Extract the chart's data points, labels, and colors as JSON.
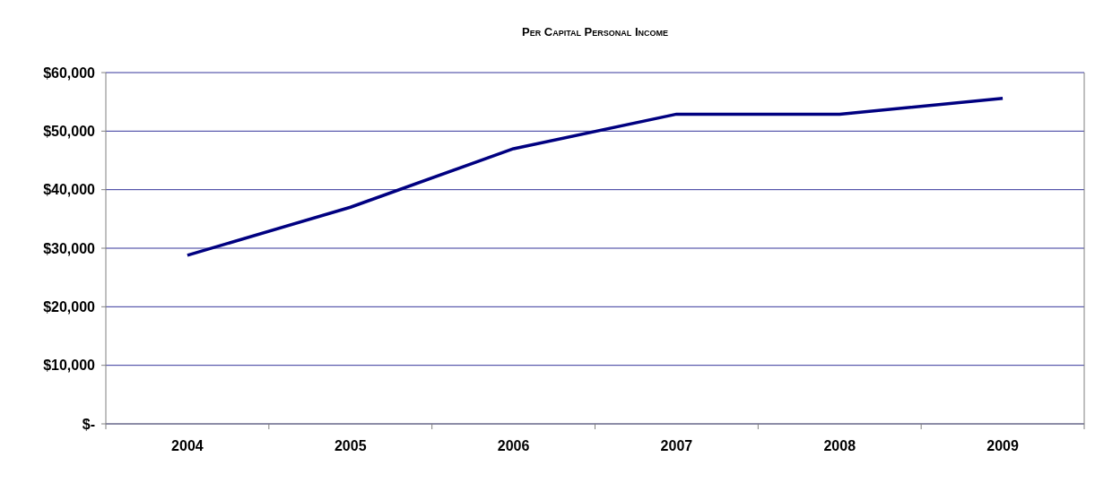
{
  "chart_data": {
    "type": "line",
    "title": "Per Capital Personal Income",
    "categories": [
      "2004",
      "2005",
      "2006",
      "2007",
      "2008",
      "2009"
    ],
    "series": [
      {
        "color": "#000080",
        "values": [
          28800,
          37000,
          47000,
          52900,
          52900,
          55600
        ]
      }
    ],
    "ylim": [
      0,
      60000
    ],
    "yticks": [
      {
        "value": 0,
        "label": "$-"
      },
      {
        "value": 10000,
        "label": "$10,000"
      },
      {
        "value": 20000,
        "label": "$20,000"
      },
      {
        "value": 30000,
        "label": "$30,000"
      },
      {
        "value": 40000,
        "label": "$40,000"
      },
      {
        "value": 50000,
        "label": "$50,000"
      },
      {
        "value": 60000,
        "label": "$60,000"
      }
    ],
    "grid": "y",
    "marker": "none",
    "line_style": "solid"
  }
}
